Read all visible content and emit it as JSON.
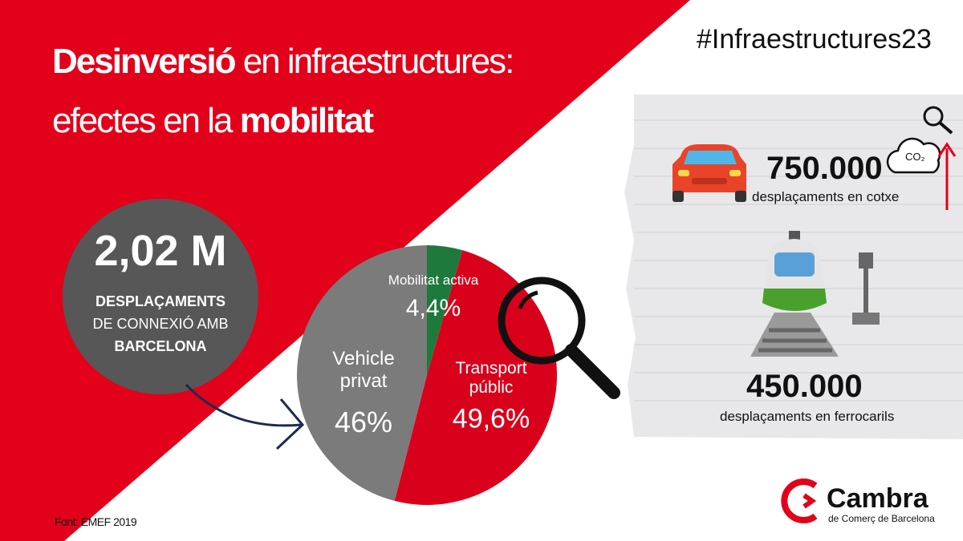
{
  "title": {
    "line1_bold": "Desinversió",
    "line1_rest": " en infraestructures:",
    "line2_rest": "efectes en la ",
    "line2_bold": "mobilitat"
  },
  "hashtag": "#Infraestructures23",
  "total": {
    "value": "2,02 M",
    "line1": "DESPLAÇAMENTS",
    "line2": "DE CONNEXIÓ AMB",
    "line3": "BARCELONA"
  },
  "car": {
    "value": "750.000",
    "label": "desplaçaments en cotxe",
    "co2": "CO₂"
  },
  "train": {
    "value": "450.000",
    "label": "desplaçaments en ferrocarils"
  },
  "source": "Font: EMEF 2019",
  "logo": {
    "name": "Cambra",
    "subtitle": "de Comerç de Barcelona"
  },
  "chart_data": {
    "type": "pie",
    "categories": [
      "Mobilitat activa",
      "Transport públic",
      "Vehicle privat"
    ],
    "values": [
      4.4,
      49.6,
      46
    ],
    "value_labels": [
      "4,4%",
      "49,6%",
      "46%"
    ],
    "colors": [
      "#1e7a3c",
      "#d9001b",
      "#7b7b7b"
    ]
  }
}
